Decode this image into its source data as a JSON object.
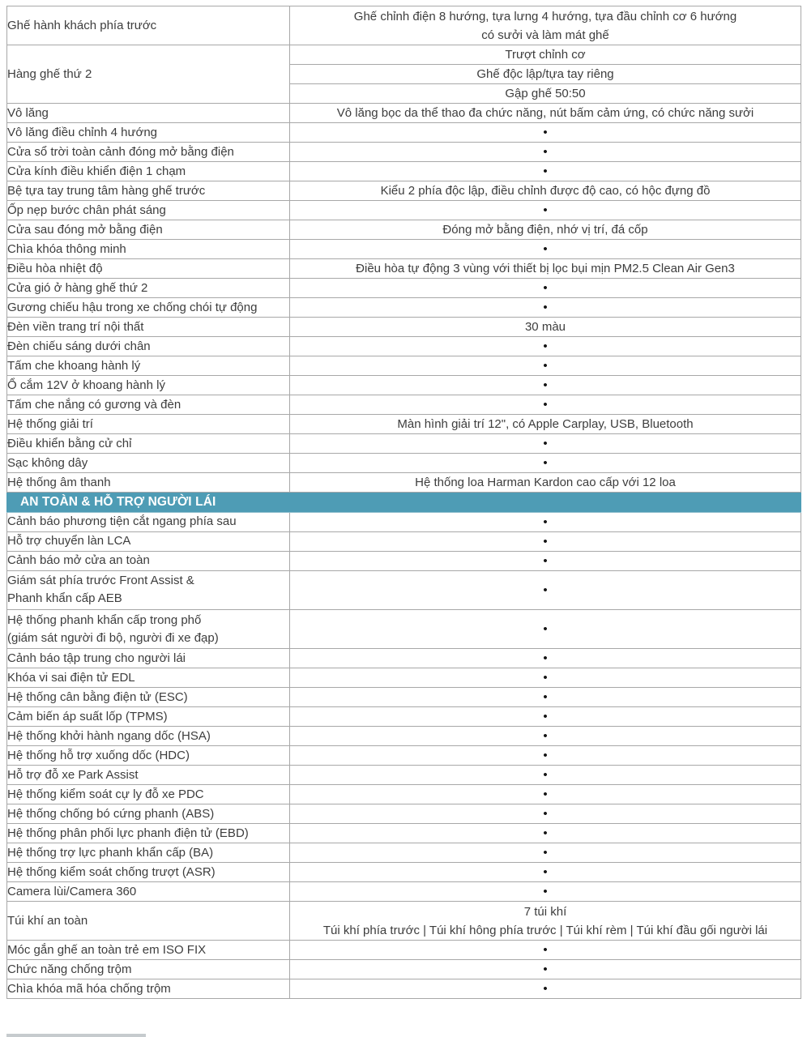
{
  "colors": {
    "section_header_bg": "#4e9cb5",
    "section_header_text": "#ffffff",
    "grid_border": "#a8a8a8",
    "body_text": "#3d3d3d"
  },
  "table": {
    "rows": [
      {
        "type": "row",
        "size": "double",
        "label": [
          "Ghế hành khách phía trước"
        ],
        "value": [
          "Ghế chỉnh điện 8 hướng, tựa lưng 4 hướng, tựa đầu chỉnh cơ 6 hướng",
          "có sưởi và làm mát ghế"
        ]
      },
      {
        "type": "group",
        "label": [
          "Hàng ghế thứ 2"
        ],
        "values": [
          "Trượt chỉnh cơ",
          "Ghế độc lập/tựa tay riêng",
          "Gập ghế 50:50"
        ]
      },
      {
        "type": "row",
        "size": "single",
        "label": [
          "Vô lăng"
        ],
        "value": [
          "Vô lăng bọc da thể thao đa chức năng, nút bấm cảm ứng, có chức năng sưởi"
        ]
      },
      {
        "type": "row",
        "size": "single",
        "label": [
          "Vô lăng điều chỉnh 4 hướng"
        ],
        "value": [
          "•"
        ]
      },
      {
        "type": "row",
        "size": "single",
        "label": [
          "Cửa sổ trời toàn cảnh đóng mở bằng điện"
        ],
        "value": [
          "•"
        ]
      },
      {
        "type": "row",
        "size": "single",
        "label": [
          "Cửa kính điều khiển điện 1 chạm"
        ],
        "value": [
          "•"
        ]
      },
      {
        "type": "row",
        "size": "single",
        "label": [
          "Bệ tựa tay trung tâm hàng ghế trước"
        ],
        "value": [
          "Kiểu 2 phía độc lập, điều chỉnh được độ cao, có hộc đựng đồ"
        ]
      },
      {
        "type": "row",
        "size": "single",
        "label": [
          "Ốp nẹp bước chân phát sáng"
        ],
        "value": [
          "•"
        ]
      },
      {
        "type": "row",
        "size": "single",
        "label": [
          "Cửa sau đóng mở bằng điện"
        ],
        "value": [
          "Đóng mở bằng điện, nhớ vị trí, đá cốp"
        ]
      },
      {
        "type": "row",
        "size": "single",
        "label": [
          "Chìa khóa thông minh"
        ],
        "value": [
          "•"
        ]
      },
      {
        "type": "row",
        "size": "single",
        "label": [
          "Điều hòa nhiệt độ"
        ],
        "value": [
          "Điều hòa tự động 3 vùng với thiết bị lọc bụi mịn PM2.5 Clean Air Gen3"
        ]
      },
      {
        "type": "row",
        "size": "single",
        "label": [
          "Cửa gió ở hàng ghế thứ 2"
        ],
        "value": [
          "•"
        ]
      },
      {
        "type": "row",
        "size": "single",
        "label": [
          "Gương chiếu hậu trong xe chống chói tự động"
        ],
        "value": [
          "•"
        ]
      },
      {
        "type": "row",
        "size": "single",
        "label": [
          "Đèn viền trang trí nội thất"
        ],
        "value": [
          "30 màu"
        ]
      },
      {
        "type": "row",
        "size": "single",
        "label": [
          "Đèn chiếu sáng dưới chân"
        ],
        "value": [
          "•"
        ]
      },
      {
        "type": "row",
        "size": "single",
        "label": [
          "Tấm che khoang hành lý"
        ],
        "value": [
          "•"
        ]
      },
      {
        "type": "row",
        "size": "single",
        "label": [
          "Ổ cắm 12V ở khoang hành lý"
        ],
        "value": [
          "•"
        ]
      },
      {
        "type": "row",
        "size": "single",
        "label": [
          "Tấm che nắng có gương và đèn"
        ],
        "value": [
          "•"
        ]
      },
      {
        "type": "row",
        "size": "single",
        "label": [
          "Hệ thống giải trí"
        ],
        "value": [
          "Màn hình giải trí 12\", có Apple Carplay, USB, Bluetooth"
        ]
      },
      {
        "type": "row",
        "size": "single",
        "label": [
          "Điều khiển bằng cử chỉ"
        ],
        "value": [
          "•"
        ]
      },
      {
        "type": "row",
        "size": "single",
        "label": [
          "Sạc không dây"
        ],
        "value": [
          "•"
        ]
      },
      {
        "type": "row",
        "size": "single",
        "label": [
          "Hệ thống âm thanh"
        ],
        "value": [
          "Hệ thống loa Harman Kardon cao cấp với 12 loa"
        ]
      },
      {
        "type": "section",
        "label": "AN TOÀN & HỖ TRỢ NGƯỜI LÁI"
      },
      {
        "type": "row",
        "size": "single",
        "label": [
          "Cảnh báo phương tiện cắt ngang phía sau"
        ],
        "value": [
          "•"
        ]
      },
      {
        "type": "row",
        "size": "single",
        "label": [
          "Hỗ trợ chuyển làn LCA"
        ],
        "value": [
          "•"
        ]
      },
      {
        "type": "row",
        "size": "single",
        "label": [
          "Cảnh báo mở cửa an toàn"
        ],
        "value": [
          "•"
        ]
      },
      {
        "type": "row",
        "size": "double",
        "label": [
          "Giám sát phía trước Front Assist &",
          "Phanh khẩn cấp AEB"
        ],
        "value": [
          "•"
        ]
      },
      {
        "type": "row",
        "size": "double",
        "label": [
          "Hệ thống phanh khẩn cấp trong phố",
          "(giám sát người đi bộ, người đi xe đạp)"
        ],
        "value": [
          "•"
        ]
      },
      {
        "type": "row",
        "size": "single",
        "label": [
          "Cảnh báo tập trung cho người lái"
        ],
        "value": [
          "•"
        ]
      },
      {
        "type": "row",
        "size": "single",
        "label": [
          "Khóa vi sai điện tử EDL"
        ],
        "value": [
          "•"
        ]
      },
      {
        "type": "row",
        "size": "single",
        "label": [
          "Hệ thống cân bằng điện tử (ESC)"
        ],
        "value": [
          "•"
        ]
      },
      {
        "type": "row",
        "size": "single",
        "label": [
          "Cảm biến áp suất lốp (TPMS)"
        ],
        "value": [
          "•"
        ]
      },
      {
        "type": "row",
        "size": "single",
        "label": [
          "Hệ thống khởi hành ngang dốc (HSA)"
        ],
        "value": [
          "•"
        ]
      },
      {
        "type": "row",
        "size": "single",
        "label": [
          "Hệ thống hỗ trợ xuống dốc (HDC)"
        ],
        "value": [
          "•"
        ]
      },
      {
        "type": "row",
        "size": "single",
        "label": [
          "Hỗ trợ đỗ xe Park Assist"
        ],
        "value": [
          "•"
        ]
      },
      {
        "type": "row",
        "size": "single",
        "label": [
          "Hệ thống kiểm soát cự ly đỗ xe PDC"
        ],
        "value": [
          "•"
        ]
      },
      {
        "type": "row",
        "size": "single",
        "label": [
          "Hệ thống chống bó cứng phanh (ABS)"
        ],
        "value": [
          "•"
        ]
      },
      {
        "type": "row",
        "size": "single",
        "label": [
          "Hệ thống phân phối lực phanh điện tử (EBD)"
        ],
        "value": [
          "•"
        ]
      },
      {
        "type": "row",
        "size": "single",
        "label": [
          "Hệ thống trợ lực phanh khẩn cấp (BA)"
        ],
        "value": [
          "•"
        ]
      },
      {
        "type": "row",
        "size": "single",
        "label": [
          "Hệ thống kiểm soát chống trượt (ASR)"
        ],
        "value": [
          "•"
        ]
      },
      {
        "type": "row",
        "size": "single",
        "label": [
          "Camera lùi/Camera 360"
        ],
        "value": [
          "•"
        ]
      },
      {
        "type": "row",
        "size": "double",
        "label": [
          "Túi khí an toàn"
        ],
        "value": [
          "7 túi khí",
          "Túi khí phía trước | Túi khí hông phía trước | Túi khí rèm | Túi khí đầu gối người lái"
        ]
      },
      {
        "type": "row",
        "size": "single",
        "label": [
          "Móc gắn ghế an toàn trẻ em ISO FIX"
        ],
        "value": [
          "•"
        ]
      },
      {
        "type": "row",
        "size": "single",
        "label": [
          "Chức năng chống trộm"
        ],
        "value": [
          "•"
        ]
      },
      {
        "type": "row",
        "size": "single",
        "label": [
          "Chìa khóa mã hóa chống trộm"
        ],
        "value": [
          "•"
        ]
      }
    ]
  }
}
